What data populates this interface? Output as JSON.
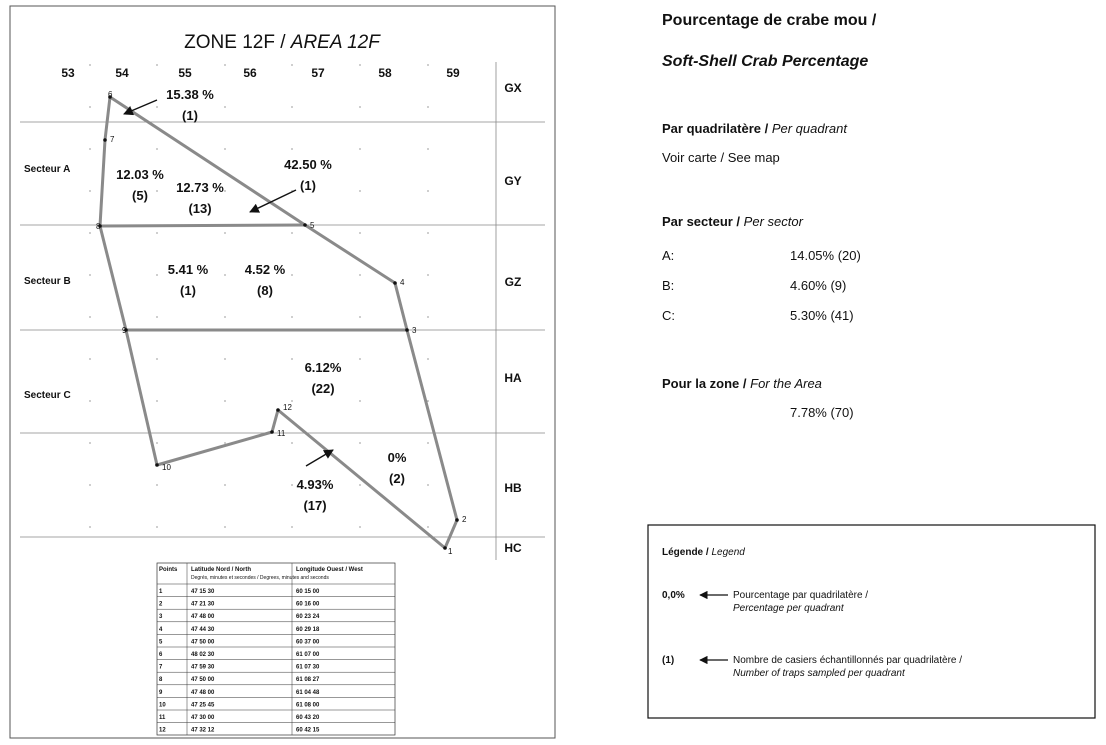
{
  "map": {
    "title": "ZONE 12F /",
    "title_en": "AREA 12F",
    "columns": [
      "53",
      "54",
      "55",
      "56",
      "57",
      "58",
      "59"
    ],
    "rows": [
      "GX",
      "GY",
      "GZ",
      "HA",
      "HB",
      "HC"
    ],
    "sectors": [
      "Secteur A",
      "Secteur B",
      "Secteur C"
    ],
    "points": [
      "1",
      "2",
      "3",
      "4",
      "5",
      "6",
      "7",
      "8",
      "9",
      "10",
      "11",
      "12"
    ],
    "quadrants": [
      {
        "pct": "15.38 %",
        "n": "(1)"
      },
      {
        "pct": "12.03 %",
        "n": "(5)"
      },
      {
        "pct": "12.73 %",
        "n": "(13)"
      },
      {
        "pct": "42.50 %",
        "n": "(1)"
      },
      {
        "pct": "5.41 %",
        "n": "(1)"
      },
      {
        "pct": "4.52 %",
        "n": "(8)"
      },
      {
        "pct": "6.12%",
        "n": "(22)"
      },
      {
        "pct": "0%",
        "n": "(2)"
      },
      {
        "pct": "4.93%",
        "n": "(17)"
      }
    ],
    "table": {
      "header": [
        "Points",
        "Latitude Nord / North",
        "Longitude Ouest / West"
      ],
      "subheader": "Degrés, minutes et secondes / Degrees, minutes and seconds",
      "rows": [
        [
          "1",
          "47 15 30",
          "60 15 00"
        ],
        [
          "2",
          "47 21 30",
          "60 16 00"
        ],
        [
          "3",
          "47 48 00",
          "60 23 24"
        ],
        [
          "4",
          "47 44 30",
          "60 29 18"
        ],
        [
          "5",
          "47 50 00",
          "60 37 00"
        ],
        [
          "6",
          "48 02 30",
          "61 07 00"
        ],
        [
          "7",
          "47 59 30",
          "61 07 30"
        ],
        [
          "8",
          "47 50 00",
          "61 08 27"
        ],
        [
          "9",
          "47 48 00",
          "61 04 48"
        ],
        [
          "10",
          "47 25 45",
          "61 08 00"
        ],
        [
          "11",
          "47 30 00",
          "60 43 20"
        ],
        [
          "12",
          "47 32 12",
          "60 42 15"
        ]
      ]
    }
  },
  "summary": {
    "title": "Pourcentage de crabe mou /",
    "title_en": "Soft-Shell Crab Percentage",
    "per_quadrant": {
      "heading": "Par quadrilatère /",
      "heading_en": "Per quadrant",
      "text": "Voir carte / See map"
    },
    "per_sector": {
      "heading": "Par secteur /",
      "heading_en": "Per sector",
      "rows": [
        [
          "A:",
          "14.05% (20)"
        ],
        [
          "B:",
          "4.60% (9)"
        ],
        [
          "C:",
          "5.30% (41)"
        ]
      ]
    },
    "zone": {
      "heading": "Pour la zone /",
      "heading_en": "For the Area",
      "value": "7.78% (70)"
    }
  },
  "legend": {
    "title": "Légende /",
    "title_en": "Legend",
    "items": [
      {
        "symbol": "0,0%",
        "text": "Pourcentage par quadrilatère /",
        "text_en": "Percentage per quadrant"
      },
      {
        "symbol": "(1)",
        "text": "Nombre de casiers échantillonnés par quadrilatère /",
        "text_en": "Number of traps sampled per quadrant"
      }
    ]
  }
}
